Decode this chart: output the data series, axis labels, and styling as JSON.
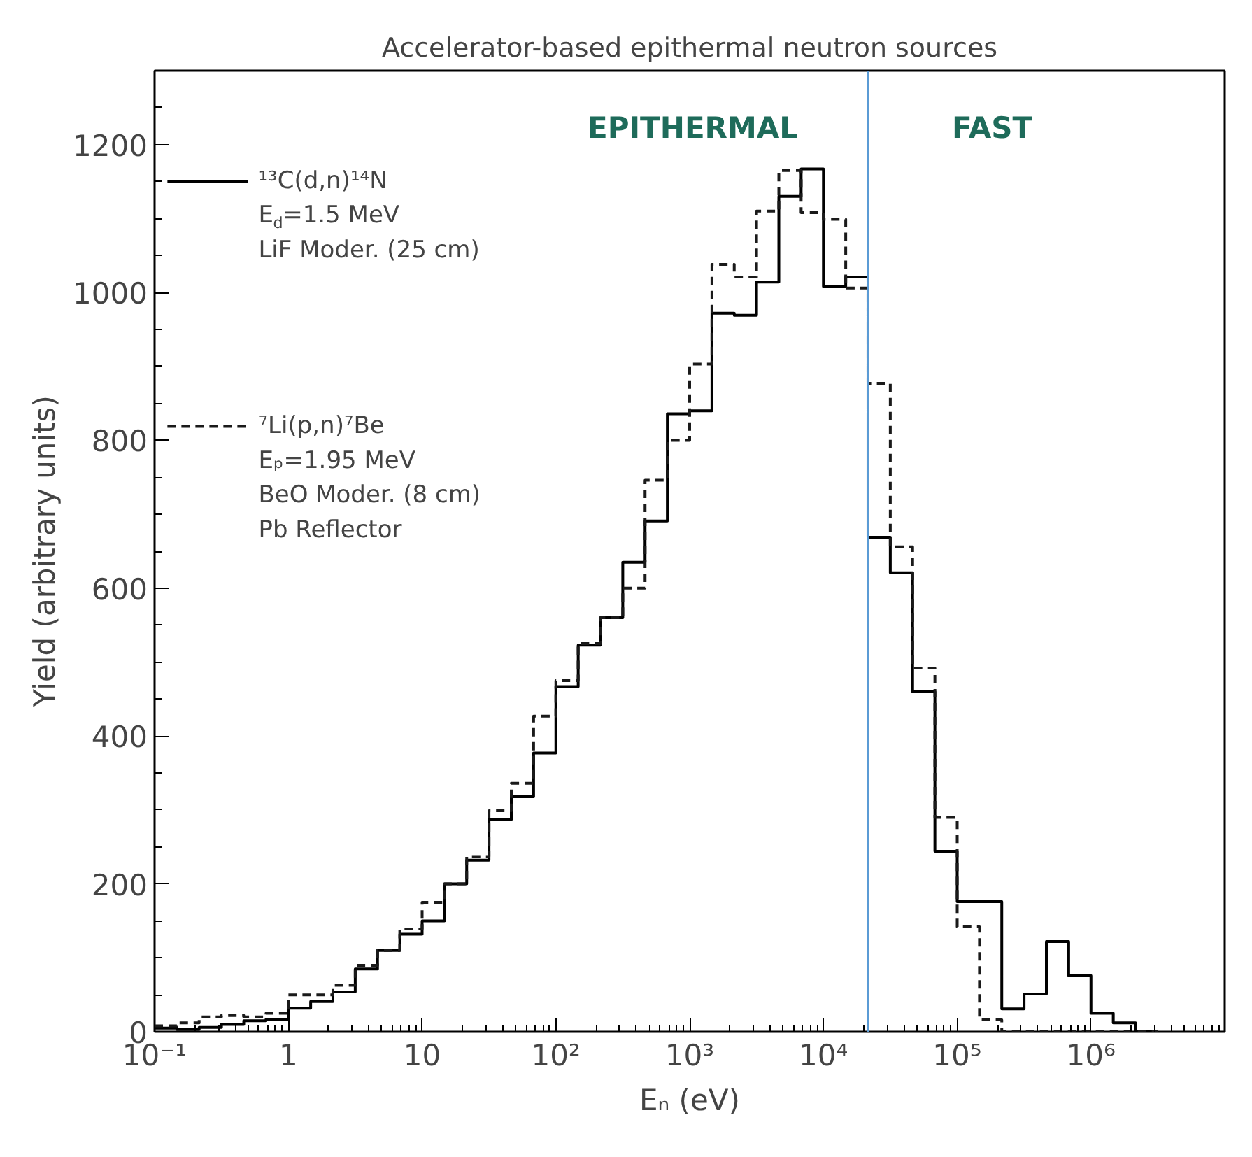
{
  "chart_data": {
    "type": "histogram",
    "title": "Accelerator-based epithermal neutron sources",
    "xlabel": "Eₙ (eV)",
    "ylabel": "Yield (arbitrary units)",
    "log": "x",
    "xlim": [
      0.1,
      10000000
    ],
    "ylim": [
      0,
      1300
    ],
    "xticks": [
      {
        "value": 0.1,
        "label": "10⁻¹"
      },
      1,
      10,
      {
        "value": 100,
        "label": "10²"
      },
      {
        "value": 1000,
        "label": "10³"
      },
      {
        "value": 10000,
        "label": "10⁴"
      },
      {
        "value": 100000,
        "label": "10⁵"
      },
      {
        "value": 1000000,
        "label": "10⁶"
      }
    ],
    "yticks": [
      0,
      200,
      400,
      600,
      800,
      1000,
      1200
    ],
    "bins": [
      0.1,
      0.1468,
      0.2154,
      0.3162,
      0.4642,
      0.6813,
      1,
      1.468,
      2.154,
      3.162,
      4.642,
      6.813,
      10,
      14.68,
      21.54,
      31.62,
      46.42,
      68.13,
      100,
      146.8,
      215.4,
      316.2,
      464.2,
      681.3,
      1000,
      1468,
      2154,
      3162,
      4642,
      6813,
      10000,
      14680,
      21540,
      31620,
      46420,
      68130,
      100000,
      146800,
      215400,
      316200,
      464200,
      681300,
      1000000,
      1468000,
      2154000,
      3162000
    ],
    "series": [
      {
        "name": "¹³C(d,n)¹⁴N\nE$_{d}$=1.5 MeV\nLiF Moder. (25 cm)",
        "color": "#000000",
        "line_style": "solid",
        "values": [
          5,
          3,
          6,
          10,
          15,
          17,
          32,
          41,
          54,
          85,
          110,
          132,
          150,
          200,
          232,
          287,
          318,
          377,
          467,
          523,
          560,
          635,
          691,
          836,
          840,
          972,
          969,
          1014,
          1130,
          1167,
          1008,
          1021,
          669,
          621,
          460,
          244,
          176,
          176,
          31,
          51,
          122,
          76,
          25,
          12,
          1
        ]
      },
      {
        "name": "⁷Li(p,n)⁷Be\nEₚ=1.95 MeV\nBeO Moder. (8 cm)\nPb Reflector",
        "color": "#1a1a1a",
        "line_style": "dashed",
        "values": [
          8,
          12,
          20,
          22,
          20,
          25,
          50,
          50,
          63,
          90,
          110,
          139,
          175,
          200,
          237,
          299,
          336,
          427,
          475,
          525,
          560,
          600,
          746,
          800,
          903,
          1038,
          1021,
          1110,
          1165,
          1108,
          1099,
          1006,
          877,
          656,
          492,
          290,
          142,
          16,
          0,
          0,
          0,
          0,
          0,
          0,
          0
        ]
      }
    ],
    "legend": "top left",
    "ref_lines": [
      {
        "axis": "x",
        "value": 21540,
        "color": "#5b9bd5"
      }
    ],
    "annotations": [
      "EPITHERMAL",
      "FAST"
    ]
  }
}
